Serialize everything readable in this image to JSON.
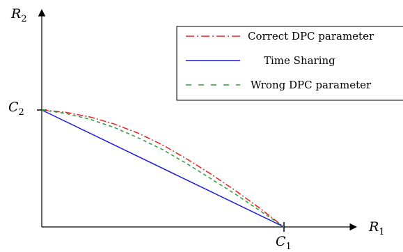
{
  "chart_data": {
    "type": "line",
    "title": "",
    "axes": {
      "x": {
        "label_main": "R",
        "label_sub": "1",
        "tick_main": "C",
        "tick_sub": "1",
        "tick_value": 1.0
      },
      "y": {
        "label_main": "R",
        "label_sub": "2",
        "tick_main": "C",
        "tick_sub": "2",
        "tick_value": 1.0
      }
    },
    "xlim": [
      0,
      1.2
    ],
    "ylim": [
      0,
      1.7
    ],
    "grid": false,
    "legend_position": "top-right",
    "series": [
      {
        "name": "Correct DPC parameter",
        "style": "dash-dot",
        "color": "#e8211d",
        "x": [
          0,
          0.1,
          0.2,
          0.3,
          0.4,
          0.5,
          0.6,
          0.7,
          0.8,
          0.9,
          1.0
        ],
        "y": [
          1.0,
          0.98,
          0.94,
          0.88,
          0.8,
          0.7,
          0.58,
          0.45,
          0.31,
          0.16,
          0.0
        ]
      },
      {
        "name": "Time Sharing",
        "style": "solid",
        "color": "#1a1adf",
        "x": [
          0,
          1.0
        ],
        "y": [
          1.0,
          0.0
        ]
      },
      {
        "name": "Wrong DPC parameter",
        "style": "dashed",
        "color": "#2e9b3a",
        "x": [
          0,
          0.1,
          0.2,
          0.3,
          0.4,
          0.5,
          0.6,
          0.7,
          0.8,
          0.9,
          1.0
        ],
        "y": [
          1.0,
          0.97,
          0.92,
          0.85,
          0.76,
          0.66,
          0.54,
          0.41,
          0.28,
          0.14,
          0.0
        ]
      }
    ]
  }
}
